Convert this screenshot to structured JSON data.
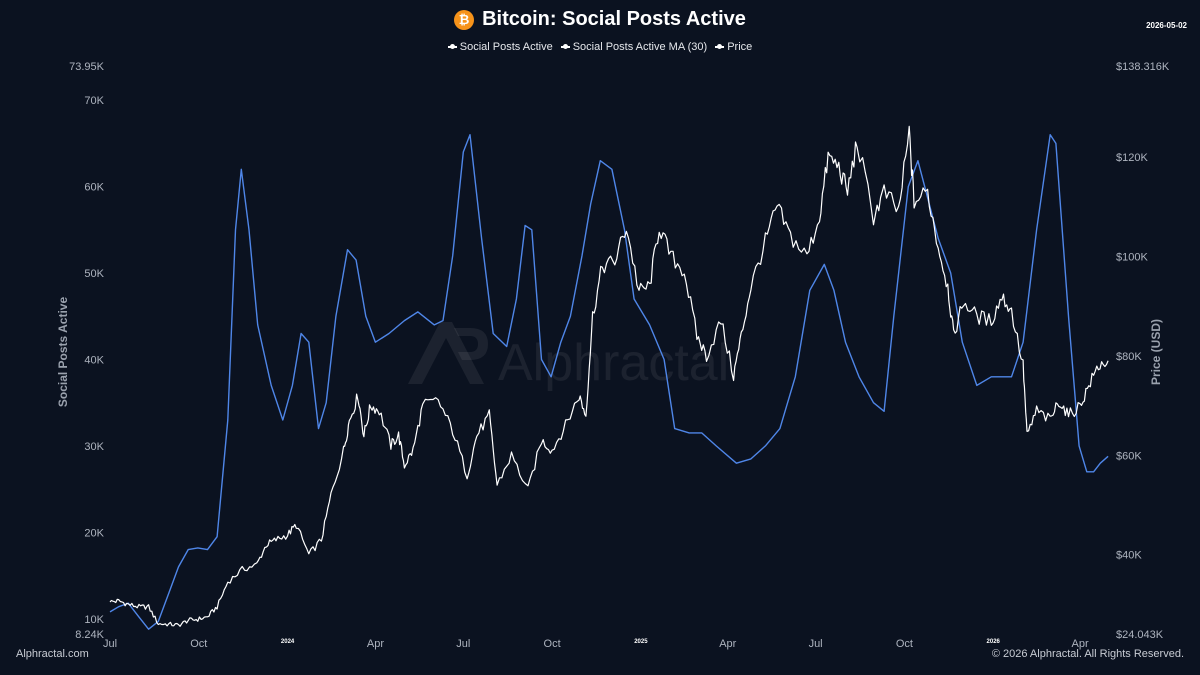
{
  "header": {
    "title": "Bitcoin: Social Posts Active",
    "icon": "bitcoin-icon",
    "icon_glyph": "₿",
    "date": "2026-05-02"
  },
  "watermark": "Alphractal",
  "footer": {
    "left": "Alphractal.com",
    "right": "© 2026 Alphractal. All Rights Reserved."
  },
  "colors": {
    "background": "#0b1220",
    "social_posts_ma": "#4f86e8",
    "price": "#ffffff",
    "bitcoin": "#f7931a"
  },
  "chart_data": {
    "type": "line",
    "title": "Bitcoin: Social Posts Active",
    "legend_position": "top-center",
    "legend": [
      "Social Posts Active",
      "Social Posts Active MA (30)",
      "Price"
    ],
    "grid": false,
    "x_range": [
      "2023-07-01",
      "2026-05-02"
    ],
    "x_ticks": [
      {
        "label": "Jul",
        "date": "2023-07-01",
        "small": false
      },
      {
        "label": "Oct",
        "date": "2023-10-01",
        "small": false
      },
      {
        "label": "2024",
        "date": "2024-01-01",
        "small": true
      },
      {
        "label": "Apr",
        "date": "2024-04-01",
        "small": false
      },
      {
        "label": "Jul",
        "date": "2024-07-01",
        "small": false
      },
      {
        "label": "Oct",
        "date": "2024-10-01",
        "small": false
      },
      {
        "label": "2025",
        "date": "2025-01-01",
        "small": true
      },
      {
        "label": "Apr",
        "date": "2025-04-01",
        "small": false
      },
      {
        "label": "Jul",
        "date": "2025-07-01",
        "small": false
      },
      {
        "label": "Oct",
        "date": "2025-10-01",
        "small": false
      },
      {
        "label": "2026",
        "date": "2026-01-01",
        "small": true
      },
      {
        "label": "Apr",
        "date": "2026-04-01",
        "small": false
      }
    ],
    "y_left": {
      "label": "Social Posts Active",
      "range": [
        8240,
        73950
      ],
      "ticks": [
        {
          "label": "8.24K",
          "value": 8240
        },
        {
          "label": "10K",
          "value": 10000
        },
        {
          "label": "20K",
          "value": 20000
        },
        {
          "label": "30K",
          "value": 30000
        },
        {
          "label": "40K",
          "value": 40000
        },
        {
          "label": "50K",
          "value": 50000
        },
        {
          "label": "60K",
          "value": 60000
        },
        {
          "label": "70K",
          "value": 70000
        },
        {
          "label": "73.95K",
          "value": 73950
        }
      ]
    },
    "y_right": {
      "label": "Price (USD)",
      "range": [
        24043,
        138316
      ],
      "ticks": [
        {
          "label": "$24.043K",
          "value": 24043
        },
        {
          "label": "$40K",
          "value": 40000
        },
        {
          "label": "$60K",
          "value": 60000
        },
        {
          "label": "$80K",
          "value": 80000
        },
        {
          "label": "$100K",
          "value": 100000
        },
        {
          "label": "$120K",
          "value": 120000
        },
        {
          "label": "$138.316K",
          "value": 138316
        }
      ]
    },
    "series": [
      {
        "name": "Social Posts Active MA (30)",
        "axis": "left",
        "color": "#4f86e8",
        "points": [
          [
            "2023-07-01",
            10800
          ],
          [
            "2023-07-10",
            11400
          ],
          [
            "2023-07-20",
            11800
          ],
          [
            "2023-07-31",
            10200
          ],
          [
            "2023-08-10",
            8800
          ],
          [
            "2023-08-20",
            9700
          ],
          [
            "2023-08-31",
            13000
          ],
          [
            "2023-09-10",
            16000
          ],
          [
            "2023-09-20",
            18000
          ],
          [
            "2023-09-30",
            18200
          ],
          [
            "2023-10-10",
            18000
          ],
          [
            "2023-10-20",
            19500
          ],
          [
            "2023-10-31",
            33000
          ],
          [
            "2023-11-08",
            55000
          ],
          [
            "2023-11-14",
            62000
          ],
          [
            "2023-11-22",
            55000
          ],
          [
            "2023-12-01",
            44000
          ],
          [
            "2023-12-15",
            37000
          ],
          [
            "2023-12-27",
            33000
          ],
          [
            "2024-01-06",
            37000
          ],
          [
            "2024-01-15",
            43000
          ],
          [
            "2024-01-23",
            42000
          ],
          [
            "2024-02-02",
            32000
          ],
          [
            "2024-02-10",
            35000
          ],
          [
            "2024-02-20",
            45000
          ],
          [
            "2024-03-03",
            52700
          ],
          [
            "2024-03-12",
            51500
          ],
          [
            "2024-03-22",
            45000
          ],
          [
            "2024-04-01",
            42000
          ],
          [
            "2024-04-15",
            43000
          ],
          [
            "2024-05-01",
            44500
          ],
          [
            "2024-05-15",
            45500
          ],
          [
            "2024-06-01",
            44000
          ],
          [
            "2024-06-10",
            44500
          ],
          [
            "2024-06-20",
            52000
          ],
          [
            "2024-07-01",
            64000
          ],
          [
            "2024-07-08",
            66000
          ],
          [
            "2024-07-20",
            54000
          ],
          [
            "2024-08-01",
            43000
          ],
          [
            "2024-08-15",
            41500
          ],
          [
            "2024-08-25",
            47000
          ],
          [
            "2024-09-03",
            55500
          ],
          [
            "2024-09-10",
            55000
          ],
          [
            "2024-09-20",
            40000
          ],
          [
            "2024-09-30",
            38000
          ],
          [
            "2024-10-10",
            42000
          ],
          [
            "2024-10-20",
            45000
          ],
          [
            "2024-11-01",
            52000
          ],
          [
            "2024-11-10",
            58000
          ],
          [
            "2024-11-20",
            63000
          ],
          [
            "2024-12-02",
            62000
          ],
          [
            "2024-12-15",
            55000
          ],
          [
            "2024-12-25",
            47000
          ],
          [
            "2025-01-10",
            44000
          ],
          [
            "2025-01-25",
            40000
          ],
          [
            "2025-02-05",
            32000
          ],
          [
            "2025-02-20",
            31500
          ],
          [
            "2025-03-05",
            31500
          ],
          [
            "2025-03-20",
            30000
          ],
          [
            "2025-04-10",
            28000
          ],
          [
            "2025-04-25",
            28500
          ],
          [
            "2025-05-10",
            30000
          ],
          [
            "2025-05-25",
            32000
          ],
          [
            "2025-06-10",
            38000
          ],
          [
            "2025-06-25",
            48000
          ],
          [
            "2025-07-10",
            51000
          ],
          [
            "2025-07-20",
            48000
          ],
          [
            "2025-08-01",
            42000
          ],
          [
            "2025-08-15",
            38000
          ],
          [
            "2025-08-30",
            35000
          ],
          [
            "2025-09-10",
            34000
          ],
          [
            "2025-09-20",
            45000
          ],
          [
            "2025-10-05",
            60000
          ],
          [
            "2025-10-15",
            63000
          ],
          [
            "2025-10-22",
            60000
          ],
          [
            "2025-11-05",
            54000
          ],
          [
            "2025-11-18",
            50000
          ],
          [
            "2025-11-30",
            42000
          ],
          [
            "2025-12-15",
            37000
          ],
          [
            "2025-12-30",
            38000
          ],
          [
            "2026-01-20",
            38000
          ],
          [
            "2026-02-01",
            42000
          ],
          [
            "2026-02-15",
            55000
          ],
          [
            "2026-03-01",
            66000
          ],
          [
            "2026-03-07",
            65000
          ],
          [
            "2026-03-20",
            45000
          ],
          [
            "2026-03-31",
            30000
          ],
          [
            "2026-04-08",
            27000
          ],
          [
            "2026-04-15",
            27000
          ],
          [
            "2026-04-22",
            28000
          ],
          [
            "2026-04-30",
            28800
          ]
        ]
      },
      {
        "name": "Price",
        "axis": "right",
        "color": "#ffffff",
        "points": [
          [
            "2023-07-01",
            30500
          ],
          [
            "2023-07-10",
            30700
          ],
          [
            "2023-07-20",
            30000
          ],
          [
            "2023-07-31",
            29500
          ],
          [
            "2023-08-10",
            29500
          ],
          [
            "2023-08-20",
            26100
          ],
          [
            "2023-08-31",
            26000
          ],
          [
            "2023-09-10",
            25800
          ],
          [
            "2023-09-20",
            26800
          ],
          [
            "2023-09-30",
            27000
          ],
          [
            "2023-10-10",
            27500
          ],
          [
            "2023-10-20",
            29500
          ],
          [
            "2023-10-31",
            34500
          ],
          [
            "2023-11-15",
            37000
          ],
          [
            "2023-11-30",
            38000
          ],
          [
            "2023-12-10",
            42000
          ],
          [
            "2023-12-20",
            43000
          ],
          [
            "2024-01-01",
            44000
          ],
          [
            "2024-01-10",
            46000
          ],
          [
            "2024-01-23",
            40000
          ],
          [
            "2024-02-05",
            43000
          ],
          [
            "2024-02-15",
            52000
          ],
          [
            "2024-02-28",
            61000
          ],
          [
            "2024-03-05",
            67000
          ],
          [
            "2024-03-14",
            72000
          ],
          [
            "2024-03-20",
            64000
          ],
          [
            "2024-03-27",
            70000
          ],
          [
            "2024-04-05",
            69000
          ],
          [
            "2024-04-17",
            62000
          ],
          [
            "2024-04-25",
            64000
          ],
          [
            "2024-05-01",
            58000
          ],
          [
            "2024-05-10",
            61000
          ],
          [
            "2024-05-20",
            70000
          ],
          [
            "2024-06-05",
            71000
          ],
          [
            "2024-06-20",
            65000
          ],
          [
            "2024-07-05",
            56000
          ],
          [
            "2024-07-15",
            64000
          ],
          [
            "2024-07-28",
            68000
          ],
          [
            "2024-08-05",
            54000
          ],
          [
            "2024-08-20",
            60000
          ],
          [
            "2024-09-06",
            53000
          ],
          [
            "2024-09-20",
            63000
          ],
          [
            "2024-10-01",
            61000
          ],
          [
            "2024-10-15",
            66000
          ],
          [
            "2024-10-29",
            72000
          ],
          [
            "2024-11-05",
            68000
          ],
          [
            "2024-11-12",
            88000
          ],
          [
            "2024-11-22",
            98000
          ],
          [
            "2024-12-05",
            99000
          ],
          [
            "2024-12-17",
            106000
          ],
          [
            "2024-12-30",
            93000
          ],
          [
            "2025-01-10",
            94000
          ],
          [
            "2025-01-20",
            106000
          ],
          [
            "2025-02-01",
            100000
          ],
          [
            "2025-02-15",
            97000
          ],
          [
            "2025-02-28",
            84000
          ],
          [
            "2025-03-10",
            80000
          ],
          [
            "2025-03-25",
            87000
          ],
          [
            "2025-04-07",
            76000
          ],
          [
            "2025-04-15",
            84000
          ],
          [
            "2025-04-25",
            94000
          ],
          [
            "2025-05-10",
            103000
          ],
          [
            "2025-05-22",
            110000
          ],
          [
            "2025-06-05",
            104000
          ],
          [
            "2025-06-22",
            100000
          ],
          [
            "2025-07-05",
            108000
          ],
          [
            "2025-07-14",
            120000
          ],
          [
            "2025-07-25",
            118000
          ],
          [
            "2025-08-03",
            113000
          ],
          [
            "2025-08-13",
            123000
          ],
          [
            "2025-08-30",
            108000
          ],
          [
            "2025-09-10",
            113000
          ],
          [
            "2025-09-25",
            109000
          ],
          [
            "2025-10-06",
            125000
          ],
          [
            "2025-10-11",
            111000
          ],
          [
            "2025-10-25",
            113000
          ],
          [
            "2025-11-05",
            102000
          ],
          [
            "2025-11-15",
            94000
          ],
          [
            "2025-11-21",
            84000
          ],
          [
            "2025-12-01",
            91000
          ],
          [
            "2025-12-15",
            88000
          ],
          [
            "2025-12-30",
            87000
          ],
          [
            "2026-01-10",
            92000
          ],
          [
            "2026-01-20",
            89000
          ],
          [
            "2026-02-01",
            78000
          ],
          [
            "2026-02-05",
            64000
          ],
          [
            "2026-02-15",
            69000
          ],
          [
            "2026-03-01",
            67000
          ],
          [
            "2026-03-10",
            71000
          ],
          [
            "2026-03-20",
            68000
          ],
          [
            "2026-04-01",
            70000
          ],
          [
            "2026-04-10",
            74000
          ],
          [
            "2026-04-20",
            78000
          ],
          [
            "2026-04-30",
            79000
          ]
        ]
      }
    ]
  }
}
